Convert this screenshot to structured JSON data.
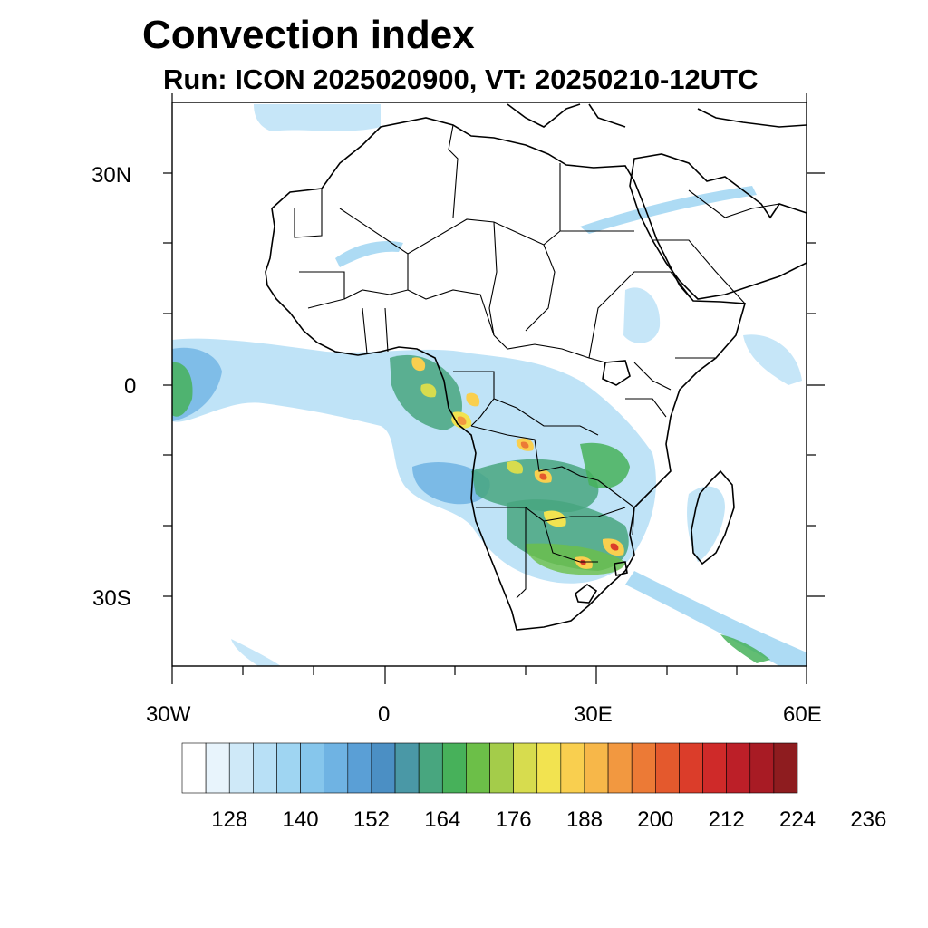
{
  "title": "Convection index",
  "subtitle": "Run: ICON 2025020900,  VT: 20250210-12UTC",
  "map": {
    "projection": "lat-lon",
    "lon_range": [
      -30,
      60
    ],
    "lat_range": [
      -40,
      40
    ],
    "lat_labels": [
      "30N",
      "0",
      "30S"
    ],
    "lon_labels": [
      "30W",
      "0",
      "30E",
      "60E"
    ],
    "coastline_color": "#000000"
  },
  "colorbar": {
    "colors": [
      "#ffffff",
      "#e8f4fc",
      "#cfe9f8",
      "#b8e0f6",
      "#9fd5f2",
      "#86c6ec",
      "#6fb3e3",
      "#5a9fd6",
      "#4b8fc4",
      "#4a98a6",
      "#48a67f",
      "#47b15a",
      "#6cbf48",
      "#a4cc4a",
      "#d7dc4e",
      "#f2e350",
      "#f9cf4f",
      "#f7b749",
      "#f29840",
      "#ec7a36",
      "#e4592d",
      "#db3d2a",
      "#cf2a29",
      "#bc1f28",
      "#a81b24",
      "#8e1c1f"
    ],
    "tick_labels": [
      "128",
      "140",
      "152",
      "164",
      "176",
      "188",
      "200",
      "212",
      "224",
      "236"
    ]
  }
}
